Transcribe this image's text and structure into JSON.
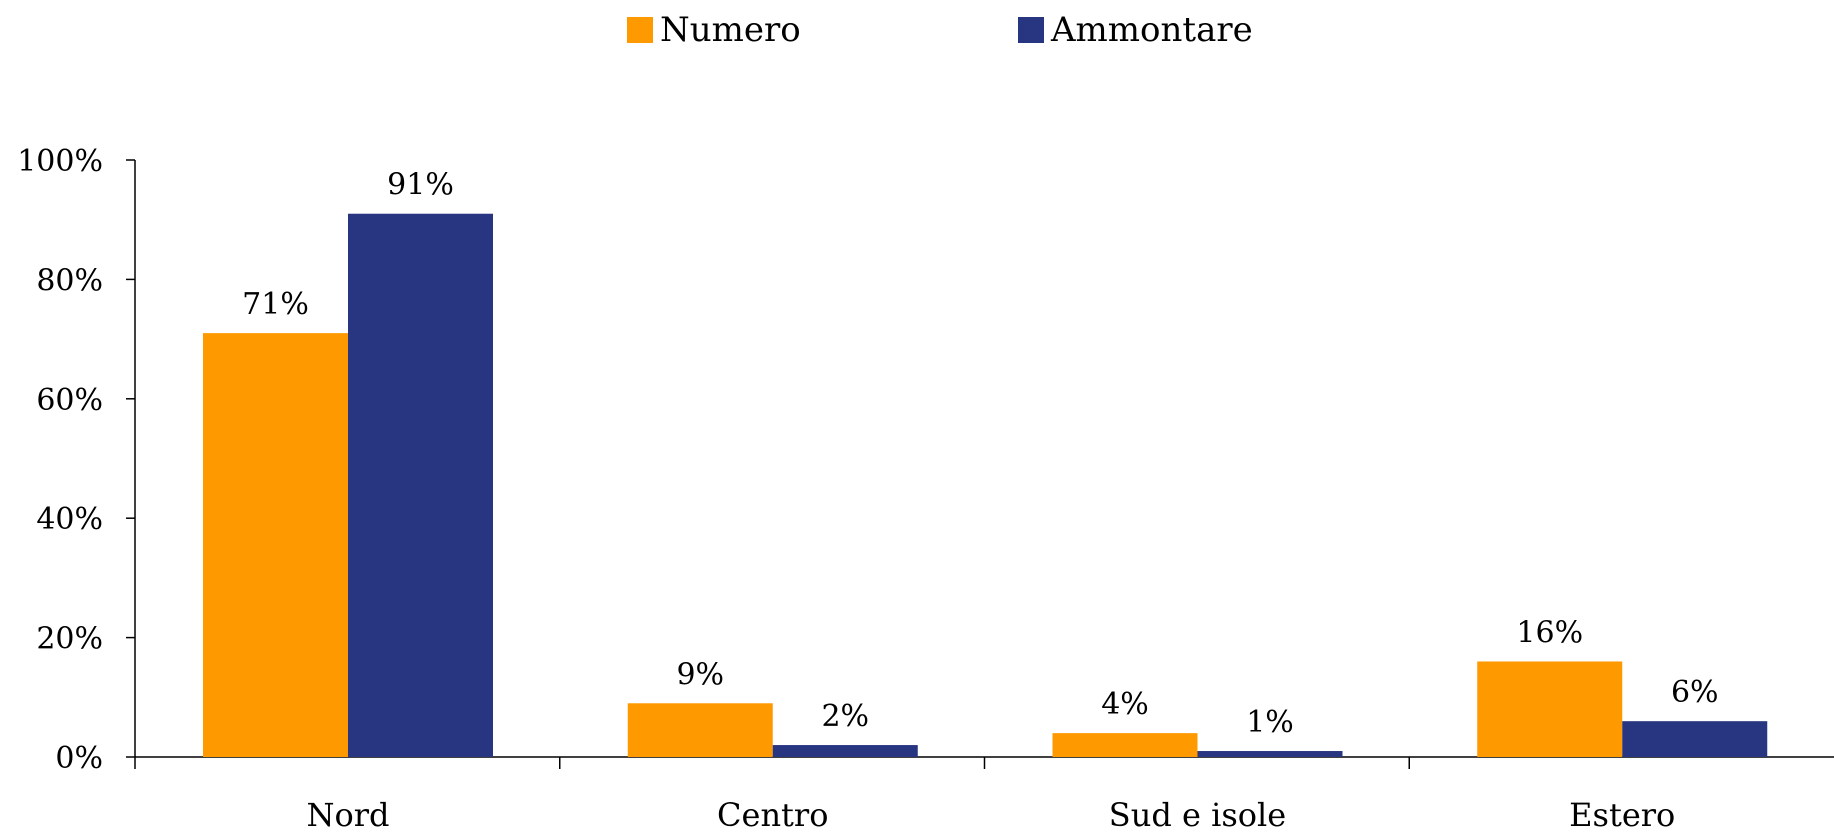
{
  "chart_data": {
    "type": "bar",
    "categories": [
      "Nord",
      "Centro",
      "Sud e isole",
      "Estero"
    ],
    "series": [
      {
        "name": "Numero",
        "values": [
          71,
          9,
          4,
          16
        ],
        "labels": [
          "71%",
          "9%",
          "4%",
          "16%"
        ],
        "color": "#FF9900"
      },
      {
        "name": "Ammontare",
        "values": [
          91,
          2,
          1,
          6
        ],
        "labels": [
          "91%",
          "2%",
          "1%",
          "6%"
        ],
        "color": "#283580"
      }
    ],
    "yticks": [
      "0%",
      "20%",
      "40%",
      "60%",
      "80%",
      "100%"
    ],
    "ylim": [
      0,
      100
    ],
    "legend": "top-center",
    "grid": false
  }
}
